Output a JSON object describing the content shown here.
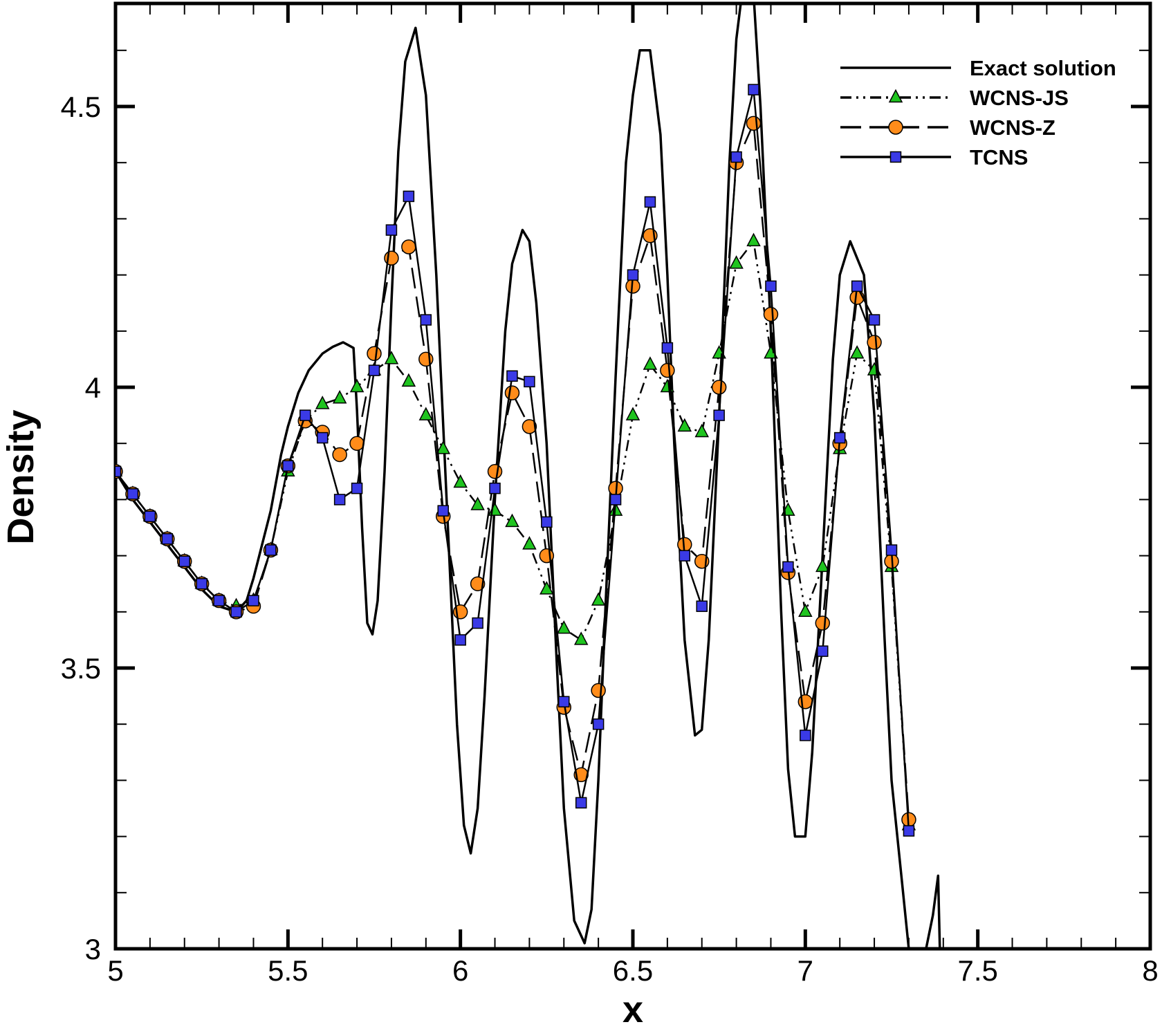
{
  "chart_data": {
    "type": "line",
    "xlabel": "x",
    "ylabel": "Density",
    "xlim": [
      5,
      8
    ],
    "ylim": [
      3,
      4.75
    ],
    "x_ticks": [
      5,
      5.5,
      6,
      6.5,
      7,
      7.5,
      8
    ],
    "x_tick_labels": [
      "5",
      "5.5",
      "6",
      "6.5",
      "7",
      "7.5",
      "8"
    ],
    "y_ticks": [
      3,
      3.5,
      4,
      4.5
    ],
    "y_tick_labels": [
      "3",
      "3.5",
      "4",
      "4.5"
    ],
    "x_minor_step": 0.1,
    "y_minor_step": 0.1,
    "grid": false,
    "legend_position": "top-right",
    "series": [
      {
        "name": "Exact solution",
        "style": "solid-line",
        "color": "#000000",
        "x": [
          5.0,
          5.05,
          5.1,
          5.15,
          5.2,
          5.25,
          5.3,
          5.35,
          5.38,
          5.4,
          5.45,
          5.48,
          5.5,
          5.53,
          5.56,
          5.6,
          5.63,
          5.66,
          5.69,
          5.7,
          5.715,
          5.73,
          5.745,
          5.76,
          5.78,
          5.8,
          5.82,
          5.84,
          5.87,
          5.9,
          5.93,
          5.96,
          5.99,
          6.01,
          6.03,
          6.05,
          6.07,
          6.1,
          6.13,
          6.15,
          6.18,
          6.2,
          6.22,
          6.25,
          6.28,
          6.3,
          6.33,
          6.36,
          6.38,
          6.4,
          6.42,
          6.45,
          6.48,
          6.5,
          6.52,
          6.55,
          6.58,
          6.6,
          6.62,
          6.65,
          6.68,
          6.7,
          6.72,
          6.75,
          6.78,
          6.8,
          6.82,
          6.85,
          6.87,
          6.9,
          6.93,
          6.95,
          6.97,
          7.0,
          7.02,
          7.05,
          7.08,
          7.1,
          7.13,
          7.17,
          7.2,
          7.23,
          7.25,
          7.28,
          7.3,
          7.33,
          7.35,
          7.37,
          7.385,
          7.39
        ],
        "y": [
          3.85,
          3.8,
          3.76,
          3.72,
          3.68,
          3.64,
          3.61,
          3.6,
          3.62,
          3.66,
          3.78,
          3.88,
          3.93,
          3.99,
          4.03,
          4.06,
          4.072,
          4.08,
          4.07,
          3.96,
          3.75,
          3.58,
          3.56,
          3.62,
          3.85,
          4.15,
          4.42,
          4.58,
          4.64,
          4.52,
          4.2,
          3.8,
          3.4,
          3.22,
          3.17,
          3.25,
          3.45,
          3.8,
          4.1,
          4.22,
          4.28,
          4.26,
          4.15,
          3.9,
          3.5,
          3.25,
          3.05,
          3.01,
          3.07,
          3.3,
          3.6,
          4.02,
          4.4,
          4.52,
          4.6,
          4.6,
          4.45,
          4.2,
          3.9,
          3.55,
          3.38,
          3.39,
          3.55,
          3.95,
          4.4,
          4.62,
          4.72,
          4.7,
          4.5,
          4.1,
          3.6,
          3.32,
          3.2,
          3.2,
          3.35,
          3.7,
          4.05,
          4.2,
          4.26,
          4.2,
          3.95,
          3.55,
          3.3,
          3.12,
          3.0,
          2.95,
          3.0,
          3.06,
          3.13,
          3.0
        ]
      },
      {
        "name": "WCNS-JS",
        "style": "dash-dot",
        "marker": "triangle",
        "marker_color": "#1fc41f",
        "x": [
          5.0,
          5.05,
          5.1,
          5.15,
          5.2,
          5.25,
          5.3,
          5.35,
          5.4,
          5.45,
          5.5,
          5.55,
          5.6,
          5.65,
          5.7,
          5.75,
          5.8,
          5.85,
          5.9,
          5.95,
          6.0,
          6.05,
          6.1,
          6.15,
          6.2,
          6.25,
          6.3,
          6.35,
          6.4,
          6.45,
          6.5,
          6.55,
          6.6,
          6.65,
          6.7,
          6.75,
          6.8,
          6.85,
          6.9,
          6.95,
          7.0,
          7.05,
          7.1,
          7.15,
          7.2,
          7.25,
          7.3
        ],
        "y": [
          3.85,
          3.81,
          3.77,
          3.73,
          3.69,
          3.65,
          3.62,
          3.61,
          3.62,
          3.71,
          3.85,
          3.94,
          3.97,
          3.98,
          4.0,
          4.03,
          4.05,
          4.01,
          3.95,
          3.89,
          3.83,
          3.79,
          3.78,
          3.76,
          3.72,
          3.64,
          3.57,
          3.55,
          3.62,
          3.78,
          3.95,
          4.04,
          4.0,
          3.93,
          3.92,
          4.06,
          4.22,
          4.26,
          4.06,
          3.78,
          3.6,
          3.68,
          3.89,
          4.06,
          4.03,
          3.68,
          3.22
        ]
      },
      {
        "name": "WCNS-Z",
        "style": "long-dash",
        "marker": "circle",
        "marker_color": "#ff8c1a",
        "x": [
          5.0,
          5.05,
          5.1,
          5.15,
          5.2,
          5.25,
          5.3,
          5.35,
          5.4,
          5.45,
          5.5,
          5.55,
          5.6,
          5.65,
          5.7,
          5.75,
          5.8,
          5.85,
          5.9,
          5.95,
          6.0,
          6.05,
          6.1,
          6.15,
          6.2,
          6.25,
          6.3,
          6.35,
          6.4,
          6.45,
          6.5,
          6.55,
          6.6,
          6.65,
          6.7,
          6.75,
          6.8,
          6.85,
          6.9,
          6.95,
          7.0,
          7.05,
          7.1,
          7.15,
          7.2,
          7.25,
          7.3
        ],
        "y": [
          3.85,
          3.81,
          3.77,
          3.73,
          3.69,
          3.65,
          3.62,
          3.6,
          3.61,
          3.71,
          3.86,
          3.94,
          3.92,
          3.88,
          3.9,
          4.06,
          4.23,
          4.25,
          4.05,
          3.77,
          3.6,
          3.65,
          3.85,
          3.99,
          3.93,
          3.7,
          3.43,
          3.31,
          3.46,
          3.82,
          4.18,
          4.27,
          4.03,
          3.72,
          3.69,
          4.0,
          4.4,
          4.47,
          4.13,
          3.67,
          3.44,
          3.58,
          3.9,
          4.16,
          4.08,
          3.69,
          3.23
        ]
      },
      {
        "name": "TCNS",
        "style": "solid-line",
        "marker": "square",
        "marker_color": "#3a3ae6",
        "x": [
          5.0,
          5.05,
          5.1,
          5.15,
          5.2,
          5.25,
          5.3,
          5.35,
          5.4,
          5.45,
          5.5,
          5.55,
          5.6,
          5.65,
          5.7,
          5.75,
          5.8,
          5.85,
          5.9,
          5.95,
          6.0,
          6.05,
          6.1,
          6.15,
          6.2,
          6.25,
          6.3,
          6.35,
          6.4,
          6.45,
          6.5,
          6.55,
          6.6,
          6.65,
          6.7,
          6.75,
          6.8,
          6.85,
          6.9,
          6.95,
          7.0,
          7.05,
          7.1,
          7.15,
          7.2,
          7.25,
          7.3
        ],
        "y": [
          3.85,
          3.81,
          3.77,
          3.73,
          3.69,
          3.65,
          3.62,
          3.6,
          3.62,
          3.71,
          3.86,
          3.95,
          3.91,
          3.8,
          3.82,
          4.03,
          4.28,
          4.34,
          4.12,
          3.78,
          3.55,
          3.58,
          3.82,
          4.02,
          4.01,
          3.76,
          3.44,
          3.26,
          3.4,
          3.8,
          4.2,
          4.33,
          4.07,
          3.7,
          3.61,
          3.95,
          4.41,
          4.53,
          4.18,
          3.68,
          3.38,
          3.53,
          3.91,
          4.18,
          4.12,
          3.71,
          3.21
        ]
      }
    ]
  }
}
